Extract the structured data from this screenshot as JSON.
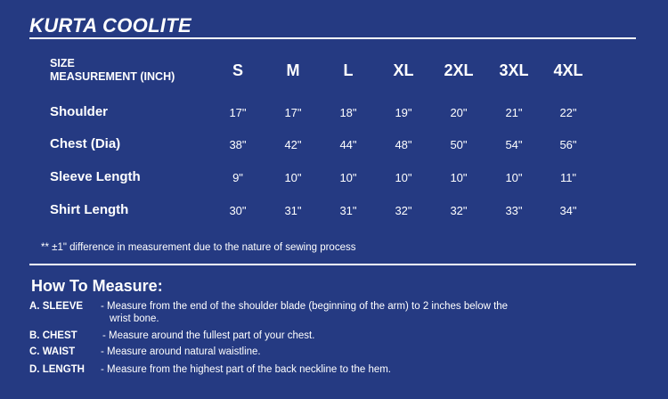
{
  "title": "KURTA COOLITE",
  "table": {
    "header_line1": "SIZE",
    "header_line2": "MEASUREMENT (INCH)",
    "sizes": [
      "S",
      "M",
      "L",
      "XL",
      "2XL",
      "3XL",
      "4XL"
    ],
    "rows": [
      {
        "label": "Shoulder",
        "values": [
          "17\"",
          "17\"",
          "18\"",
          "19\"",
          "20\"",
          "21\"",
          "22\""
        ]
      },
      {
        "label": "Chest (Dia)",
        "values": [
          "38\"",
          "42\"",
          "44\"",
          "48\"",
          "50\"",
          "54\"",
          "56\""
        ]
      },
      {
        "label": "Sleeve Length",
        "values": [
          "9\"",
          "10\"",
          "10\"",
          "10\"",
          "10\"",
          "10\"",
          "11\""
        ]
      },
      {
        "label": "Shirt Length",
        "values": [
          "30\"",
          "31\"",
          "31\"",
          "32\"",
          "32\"",
          "33\"",
          "34\""
        ]
      }
    ]
  },
  "note": "** ±1\" difference in measurement due to the nature of sewing process",
  "how_to": {
    "heading": "How To Measure:",
    "items": [
      {
        "label": "A. SLEEVE",
        "text": "- Measure from the end of the shoulder blade (beginning of the arm) to 2 inches below the",
        "text2": "wrist bone."
      },
      {
        "label": "B. CHEST",
        "text": "- Measure around the fullest part of your chest."
      },
      {
        "label": "C. WAIST",
        "text": "- Measure around natural waistline."
      },
      {
        "label": "D. LENGTH",
        "text": "- Measure from the highest part of the back neckline to the hem."
      }
    ]
  },
  "colors": {
    "background": "#253a82",
    "text": "#ffffff"
  }
}
